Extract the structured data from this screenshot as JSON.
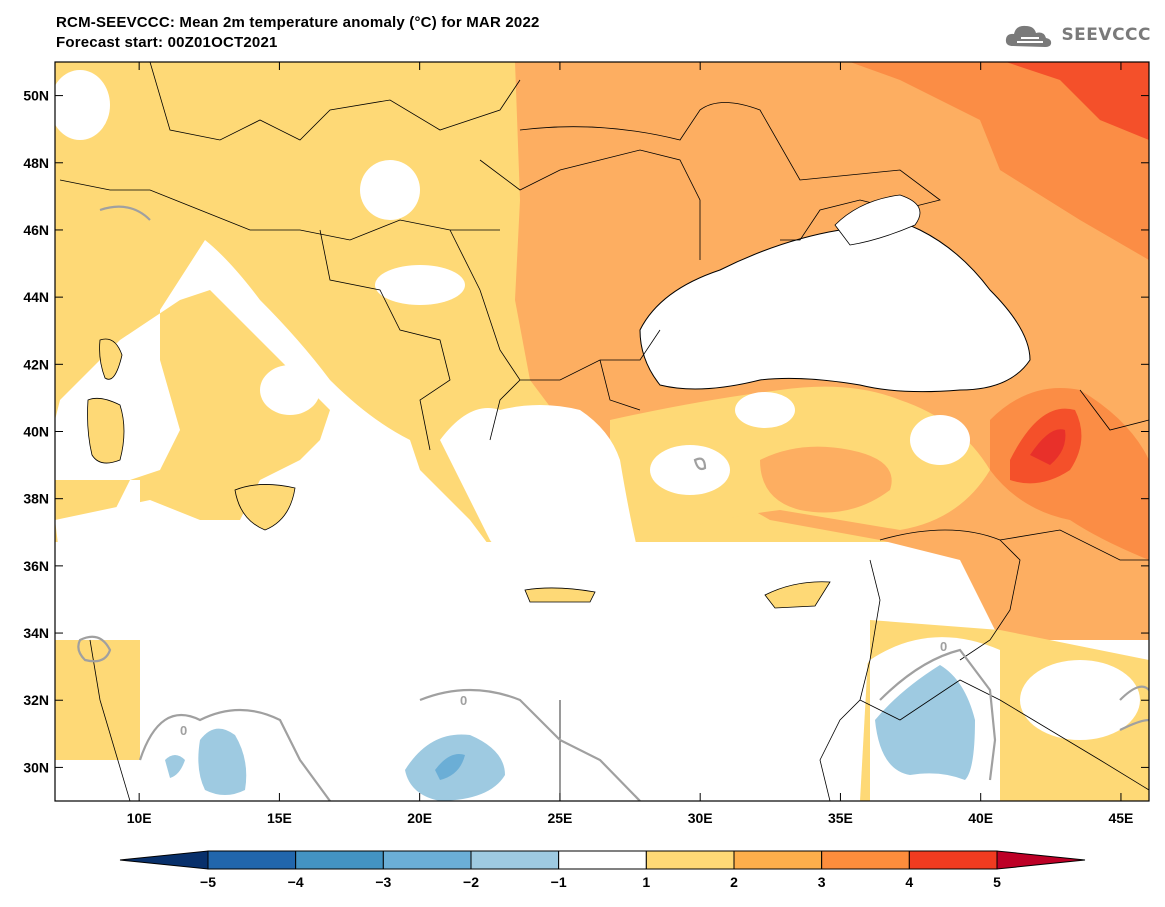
{
  "header": {
    "title": "RCM-SEEVCCC: Mean 2m temperature anomaly (°C) for MAR 2022",
    "subtitle": "Forecast start: 00Z01OCT2021"
  },
  "logo": {
    "text": "SEEVCCC",
    "icon": "cloud-icon"
  },
  "map": {
    "lon_range": [
      7,
      46
    ],
    "lat_range": [
      29,
      51
    ],
    "lat_ticks": [
      "50N",
      "48N",
      "46N",
      "44N",
      "42N",
      "40N",
      "38N",
      "36N",
      "34N",
      "32N",
      "30N"
    ],
    "lat_values": [
      50,
      48,
      46,
      44,
      42,
      40,
      38,
      36,
      34,
      32,
      30
    ],
    "lon_ticks": [
      "10E",
      "15E",
      "20E",
      "25E",
      "30E",
      "35E",
      "40E",
      "45E"
    ],
    "lon_values": [
      10,
      15,
      20,
      25,
      30,
      35,
      40,
      45
    ],
    "contour_label": "0"
  },
  "colorbar": {
    "labels": [
      "-5",
      "-4",
      "-3",
      "-2",
      "-1",
      "1",
      "2",
      "3",
      "4",
      "5"
    ],
    "bins": [
      {
        "color": "#08306b"
      },
      {
        "color": "#2166ac"
      },
      {
        "color": "#4393c3"
      },
      {
        "color": "#6baed6"
      },
      {
        "color": "#9ecae1"
      },
      {
        "color": "#ffffff"
      },
      {
        "color": "#fed976"
      },
      {
        "color": "#fdae4b"
      },
      {
        "color": "#fd8d3c"
      },
      {
        "color": "#f03b20"
      },
      {
        "color": "#bd0026"
      }
    ]
  },
  "colors": {
    "c1": "#fed976",
    "c2": "#fdae61",
    "c3": "#fb8d45",
    "c4": "#f4502a",
    "cneg1": "#9ecae1",
    "cneg2": "#6baed6"
  }
}
